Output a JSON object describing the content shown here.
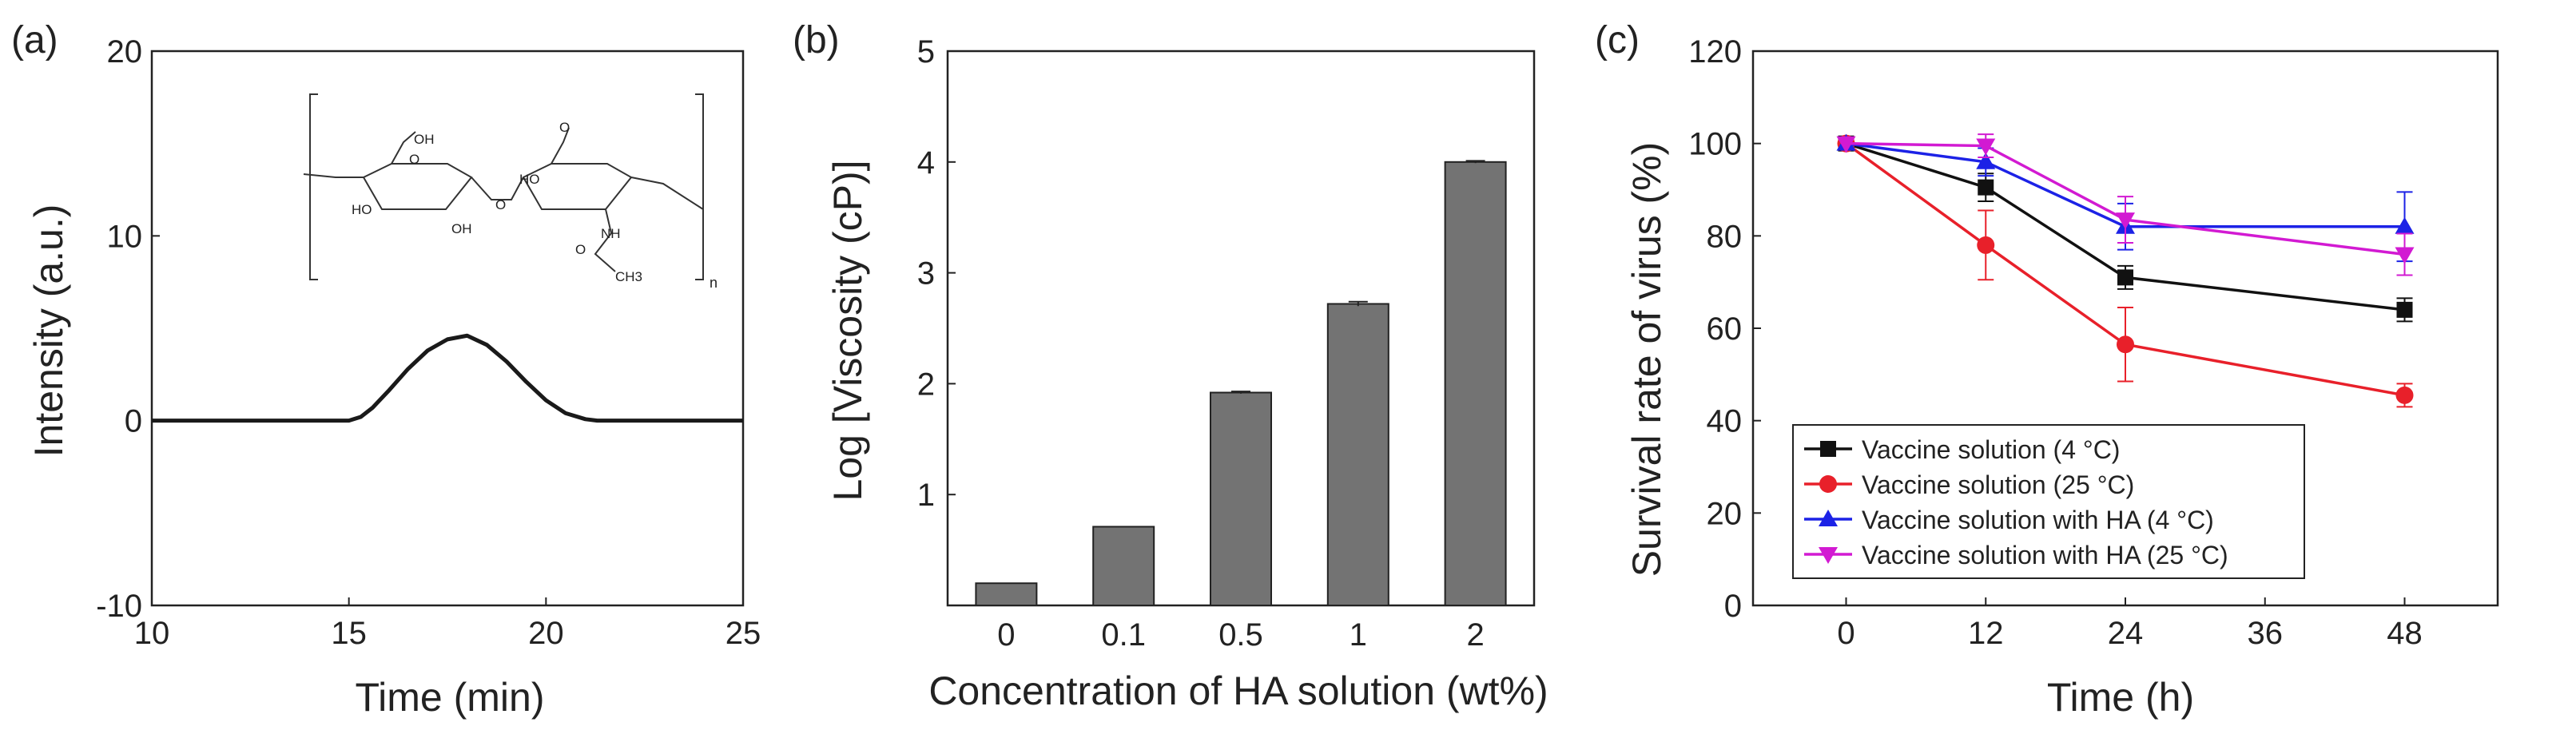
{
  "chart_data": [
    {
      "panel_label": "(a)",
      "type": "line",
      "xlabel": "Time (min)",
      "ylabel": "Intensity (a.u.)",
      "xlim": [
        10,
        25
      ],
      "ylim": [
        -10,
        20
      ],
      "xticks": [
        "10",
        "15",
        "20",
        "25"
      ],
      "yticks": [
        "-10",
        "0",
        "10",
        "20"
      ],
      "grid": false,
      "series": [
        {
          "x": [
            10,
            15,
            15.3,
            15.6,
            16,
            16.5,
            17,
            17.5,
            18,
            18.5,
            19,
            19.5,
            20,
            20.5,
            21,
            21.3,
            22,
            25
          ],
          "y": [
            0,
            0,
            0.2,
            0.7,
            1.6,
            2.8,
            3.8,
            4.4,
            4.6,
            4.1,
            3.2,
            2.1,
            1.1,
            0.4,
            0.08,
            0,
            0,
            0
          ],
          "color": "#1a1a1a"
        }
      ],
      "inset": {
        "labels": [
          "OH",
          "O",
          "HO",
          "OH",
          "O",
          "HO",
          "O",
          "NH",
          "O",
          "CH3",
          "n"
        ]
      }
    },
    {
      "panel_label": "(b)",
      "type": "bar",
      "xlabel": "Concentration of HA solution (wt%)",
      "ylabel": "Log [Viscosity (cP)]",
      "categories": [
        "0",
        "0.1",
        "0.5",
        "1",
        "2"
      ],
      "values": [
        0.2,
        0.71,
        1.92,
        2.72,
        4.0
      ],
      "errors": [
        0.0,
        0.0,
        0.01,
        0.02,
        0.01
      ],
      "ylim": [
        0,
        5
      ],
      "yticks": [
        "1",
        "2",
        "3",
        "4",
        "5"
      ],
      "grid": false,
      "bar_color": "#737373"
    },
    {
      "panel_label": "(c)",
      "type": "line",
      "xlabel": "Time (h)",
      "ylabel": "Survival rate of virus (%)",
      "xlim": [
        -8,
        56
      ],
      "ylim": [
        0,
        120
      ],
      "xticks": [
        "0",
        "12",
        "24",
        "36",
        "48"
      ],
      "yticks": [
        "0",
        "20",
        "40",
        "60",
        "80",
        "100",
        "120"
      ],
      "x": [
        0,
        12,
        24,
        48
      ],
      "grid": false,
      "legend_position": "bottom-left",
      "series": [
        {
          "name": "Vaccine solution (4 °C)",
          "values": [
            100,
            90.5,
            71,
            64
          ],
          "errors": [
            0,
            3,
            2.5,
            2.5
          ],
          "color": "#111111",
          "marker": "square"
        },
        {
          "name": "Vaccine solution (25 °C)",
          "values": [
            100,
            78,
            56.5,
            45.5
          ],
          "errors": [
            0,
            7.5,
            8,
            2.5
          ],
          "color": "#e8202a",
          "marker": "circle"
        },
        {
          "name": "Vaccine solution with HA (4 °C)",
          "values": [
            100,
            96,
            82,
            82
          ],
          "errors": [
            0,
            3,
            5,
            7.5
          ],
          "color": "#1c22e6",
          "marker": "triangle-up"
        },
        {
          "name": "Vaccine solution with HA (25 °C)",
          "values": [
            100,
            99.5,
            83.5,
            76
          ],
          "errors": [
            0,
            2.5,
            5,
            4.5
          ],
          "color": "#d21ad2",
          "marker": "triangle-down"
        }
      ]
    }
  ]
}
